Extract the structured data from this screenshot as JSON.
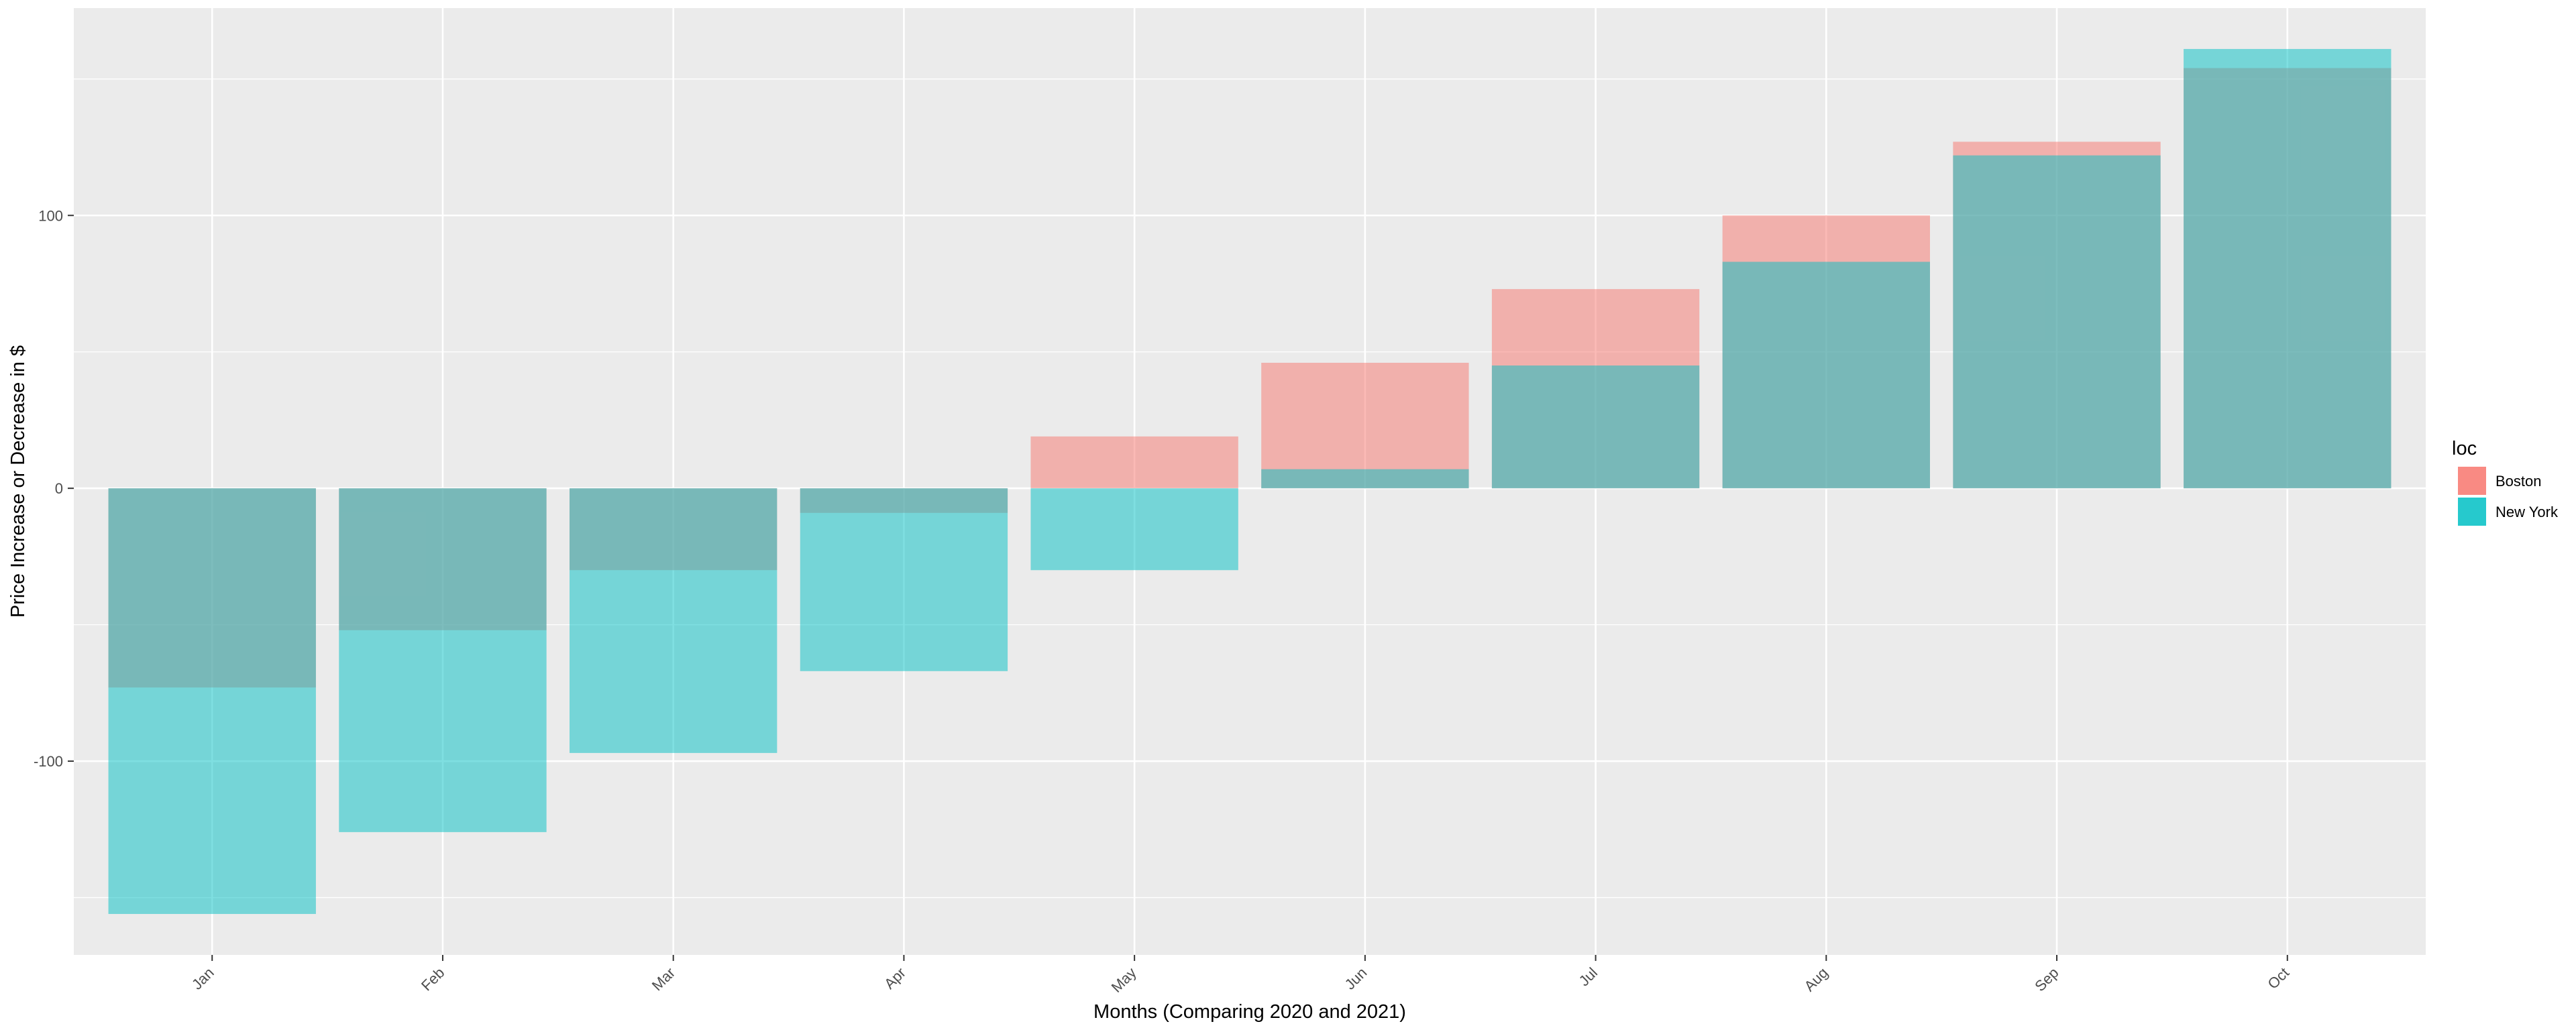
{
  "chart_data": {
    "type": "bar",
    "position": "identity-overlap",
    "categories": [
      "Jan",
      "Feb",
      "Mar",
      "Apr",
      "May",
      "Jun",
      "Jul",
      "Aug",
      "Sep",
      "Oct"
    ],
    "series": [
      {
        "name": "Boston",
        "color": "#F8766D",
        "values": [
          -73,
          -52,
          -30,
          -9,
          19,
          46,
          73,
          100,
          127,
          154
        ]
      },
      {
        "name": "New York",
        "color": "#00BFC4",
        "values": [
          -156,
          -126,
          -97,
          -67,
          -30,
          7,
          45,
          83,
          122,
          161
        ]
      }
    ],
    "bar_alpha": 0.5,
    "xlabel": "Months (Comparing 2020 and 2021)",
    "ylabel": "Price Increase or Decrease in $",
    "ylim": [
      -171,
      176
    ],
    "yticks": [
      -100,
      0,
      100
    ],
    "ytick_labels": [
      "-100",
      "0",
      "100"
    ],
    "grid": true,
    "legend": {
      "title": "loc",
      "position": "right",
      "entries": [
        "Boston",
        "New York"
      ]
    },
    "panel_color": "#EBEBEB",
    "grid_color": "#FFFFFF"
  }
}
